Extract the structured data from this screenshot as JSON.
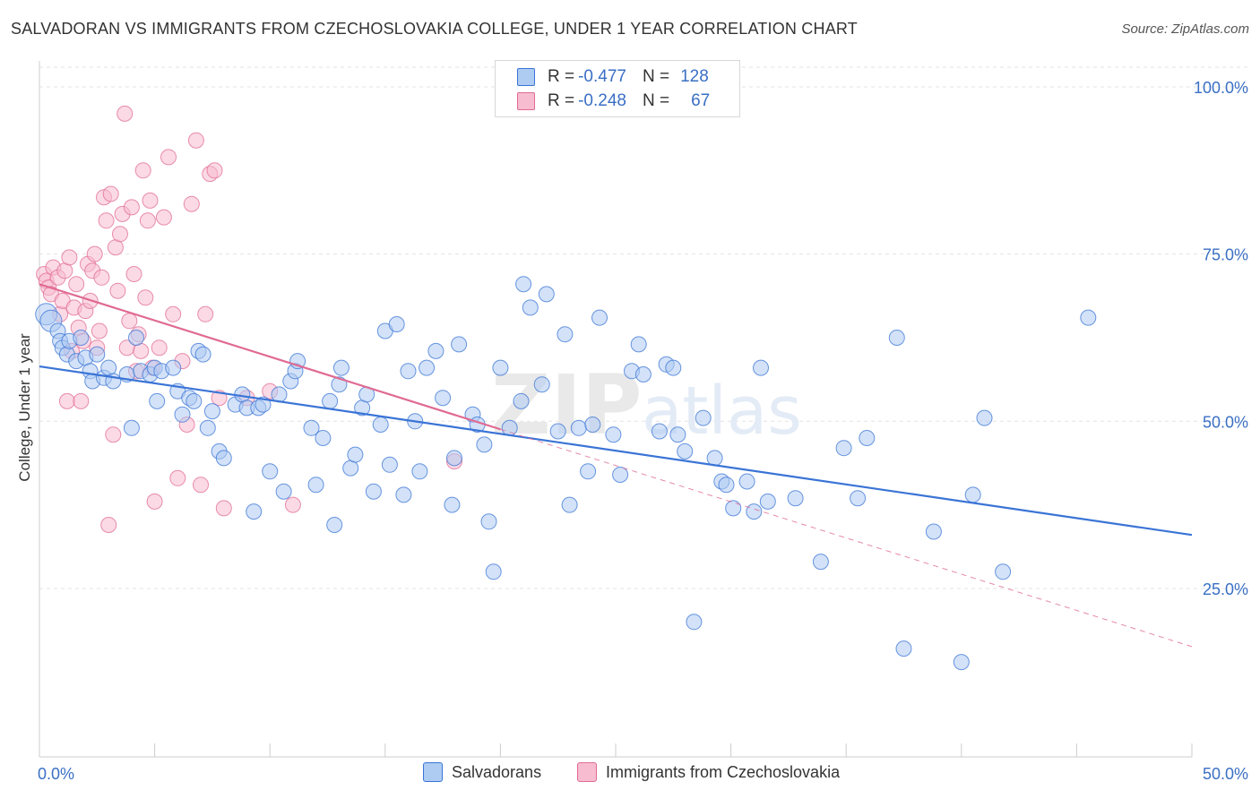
{
  "title": "SALVADORAN VS IMMIGRANTS FROM CZECHOSLOVAKIA COLLEGE, UNDER 1 YEAR CORRELATION CHART",
  "source": "Source: ZipAtlas.com",
  "watermark": {
    "zip": "ZIP",
    "atlas": "atlas"
  },
  "legend": {
    "series1": {
      "r_label": "R = ",
      "r_value": "-0.477",
      "n_label": "N = ",
      "n_value": "128"
    },
    "series2": {
      "r_label": "R = ",
      "r_value": "-0.248",
      "n_label": "N = ",
      "n_value": "67"
    }
  },
  "bottom_legend": [
    "Salvadorans",
    "Immigrants from Czechoslovakia"
  ],
  "colors": {
    "blue": "#3a74d6",
    "blue_fill": "#aecbf2",
    "pink": "#e06a93",
    "pink_fill": "#f7bccf",
    "tick_text": "#3a6fc4",
    "grid": "#e3e3e3"
  },
  "chart_data": {
    "type": "scatter",
    "title": "SALVADORAN VS IMMIGRANTS FROM CZECHOSLOVAKIA COLLEGE, UNDER 1 YEAR CORRELATION CHART",
    "xlabel": "",
    "ylabel": "College, Under 1 year",
    "xlim": [
      0,
      50
    ],
    "ylim": [
      0,
      105
    ],
    "x_tick_labels": [
      "0.0%",
      "50.0%"
    ],
    "y_tick_values": [
      25,
      50,
      75,
      100
    ],
    "y_tick_labels": [
      "25.0%",
      "50.0%",
      "75.0%",
      "100.0%"
    ],
    "grid": true,
    "legend_position": "top-center",
    "series": [
      {
        "name": "Salvadorans",
        "color": "#3a74d6",
        "trend": {
          "x": [
            0,
            50
          ],
          "y": [
            58.2,
            33.0
          ],
          "style": "solid"
        },
        "points": [
          [
            0.3,
            66.0
          ],
          [
            0.5,
            65.0
          ],
          [
            0.8,
            63.5
          ],
          [
            0.9,
            62.0
          ],
          [
            1.0,
            61.0
          ],
          [
            1.2,
            60.0
          ],
          [
            1.3,
            62.0
          ],
          [
            1.6,
            59.0
          ],
          [
            1.8,
            62.5
          ],
          [
            2.0,
            59.5
          ],
          [
            2.2,
            57.5
          ],
          [
            2.3,
            56.0
          ],
          [
            2.5,
            60.0
          ],
          [
            2.8,
            56.5
          ],
          [
            3.0,
            58.0
          ],
          [
            3.2,
            56.0
          ],
          [
            3.8,
            57.0
          ],
          [
            4.0,
            49.0
          ],
          [
            4.2,
            62.5
          ],
          [
            4.4,
            57.5
          ],
          [
            4.8,
            57.0
          ],
          [
            5.0,
            58.0
          ],
          [
            5.1,
            53.0
          ],
          [
            5.3,
            57.5
          ],
          [
            5.8,
            58.0
          ],
          [
            6.0,
            54.5
          ],
          [
            6.2,
            51.0
          ],
          [
            6.5,
            53.5
          ],
          [
            6.7,
            53.0
          ],
          [
            6.9,
            60.5
          ],
          [
            7.1,
            60.0
          ],
          [
            7.3,
            49.0
          ],
          [
            7.5,
            51.5
          ],
          [
            7.8,
            45.5
          ],
          [
            8.0,
            44.5
          ],
          [
            8.5,
            52.5
          ],
          [
            8.8,
            54.0
          ],
          [
            9.0,
            52.0
          ],
          [
            9.3,
            36.5
          ],
          [
            9.5,
            52.0
          ],
          [
            9.7,
            52.5
          ],
          [
            10.0,
            42.5
          ],
          [
            10.4,
            54.0
          ],
          [
            10.6,
            39.5
          ],
          [
            10.9,
            56.0
          ],
          [
            11.1,
            57.5
          ],
          [
            11.2,
            59.0
          ],
          [
            11.8,
            49.0
          ],
          [
            12.0,
            40.5
          ],
          [
            12.3,
            47.5
          ],
          [
            12.6,
            53.0
          ],
          [
            12.8,
            34.5
          ],
          [
            13.0,
            55.5
          ],
          [
            13.1,
            58.0
          ],
          [
            13.5,
            43.0
          ],
          [
            13.7,
            45.0
          ],
          [
            14.0,
            52.0
          ],
          [
            14.2,
            54.0
          ],
          [
            14.5,
            39.5
          ],
          [
            14.8,
            49.5
          ],
          [
            15.0,
            63.5
          ],
          [
            15.2,
            43.5
          ],
          [
            15.5,
            64.5
          ],
          [
            15.8,
            39.0
          ],
          [
            16.0,
            57.5
          ],
          [
            16.3,
            50.0
          ],
          [
            16.5,
            42.5
          ],
          [
            16.8,
            58.0
          ],
          [
            17.2,
            60.5
          ],
          [
            17.5,
            53.5
          ],
          [
            17.9,
            37.5
          ],
          [
            18.0,
            44.5
          ],
          [
            18.2,
            61.5
          ],
          [
            18.8,
            51.0
          ],
          [
            19.0,
            49.5
          ],
          [
            19.3,
            46.5
          ],
          [
            19.5,
            35.0
          ],
          [
            19.7,
            27.5
          ],
          [
            20.0,
            58.0
          ],
          [
            20.4,
            49.0
          ],
          [
            20.9,
            53.0
          ],
          [
            21.0,
            70.5
          ],
          [
            21.3,
            67.0
          ],
          [
            21.8,
            55.5
          ],
          [
            22.0,
            69.0
          ],
          [
            22.5,
            48.5
          ],
          [
            22.8,
            63.0
          ],
          [
            23.0,
            37.5
          ],
          [
            23.4,
            49.0
          ],
          [
            23.8,
            42.5
          ],
          [
            24.0,
            49.5
          ],
          [
            24.3,
            65.5
          ],
          [
            24.9,
            48.0
          ],
          [
            25.2,
            42.0
          ],
          [
            25.7,
            57.5
          ],
          [
            26.0,
            61.5
          ],
          [
            26.2,
            57.0
          ],
          [
            26.9,
            48.5
          ],
          [
            27.2,
            58.5
          ],
          [
            27.5,
            58.0
          ],
          [
            27.7,
            48.0
          ],
          [
            28.0,
            45.5
          ],
          [
            28.4,
            20.0
          ],
          [
            28.8,
            50.5
          ],
          [
            29.3,
            44.5
          ],
          [
            29.6,
            41.0
          ],
          [
            29.8,
            40.5
          ],
          [
            30.1,
            37.0
          ],
          [
            30.7,
            41.0
          ],
          [
            31.0,
            36.5
          ],
          [
            31.3,
            58.0
          ],
          [
            31.6,
            38.0
          ],
          [
            32.8,
            38.5
          ],
          [
            33.9,
            29.0
          ],
          [
            34.9,
            46.0
          ],
          [
            35.5,
            38.5
          ],
          [
            35.9,
            47.5
          ],
          [
            37.2,
            62.5
          ],
          [
            37.5,
            16.0
          ],
          [
            38.8,
            33.5
          ],
          [
            40.0,
            14.0
          ],
          [
            40.5,
            39.0
          ],
          [
            41.0,
            50.5
          ],
          [
            41.8,
            27.5
          ],
          [
            45.5,
            65.5
          ]
        ]
      },
      {
        "name": "Immigrants from Czechoslovakia",
        "color": "#e06a93",
        "trend": {
          "x": [
            0,
            20
          ],
          "y": [
            70.5,
            48.8
          ],
          "style": "solid",
          "extension": {
            "x": [
              20,
              50
            ],
            "y": [
              48.8,
              16.3
            ],
            "style": "dashed"
          }
        },
        "points": [
          [
            0.2,
            72.0
          ],
          [
            0.3,
            71.0
          ],
          [
            0.4,
            70.0
          ],
          [
            0.5,
            69.0
          ],
          [
            0.6,
            73.0
          ],
          [
            0.8,
            71.5
          ],
          [
            0.9,
            66.0
          ],
          [
            1.0,
            68.0
          ],
          [
            1.1,
            72.5
          ],
          [
            1.2,
            53.0
          ],
          [
            1.3,
            74.5
          ],
          [
            1.4,
            60.5
          ],
          [
            1.5,
            67.0
          ],
          [
            1.6,
            70.5
          ],
          [
            1.7,
            64.0
          ],
          [
            1.8,
            53.0
          ],
          [
            1.9,
            62.0
          ],
          [
            2.0,
            66.5
          ],
          [
            2.1,
            73.5
          ],
          [
            2.2,
            68.0
          ],
          [
            2.3,
            72.5
          ],
          [
            2.4,
            75.0
          ],
          [
            2.5,
            61.0
          ],
          [
            2.6,
            63.5
          ],
          [
            2.7,
            71.5
          ],
          [
            2.8,
            83.5
          ],
          [
            2.9,
            80.0
          ],
          [
            3.0,
            34.5
          ],
          [
            3.1,
            84.0
          ],
          [
            3.2,
            48.0
          ],
          [
            3.3,
            76.0
          ],
          [
            3.4,
            69.5
          ],
          [
            3.5,
            78.0
          ],
          [
            3.6,
            81.0
          ],
          [
            3.7,
            96.0
          ],
          [
            3.8,
            61.0
          ],
          [
            3.9,
            65.0
          ],
          [
            4.0,
            82.0
          ],
          [
            4.1,
            72.0
          ],
          [
            4.2,
            57.5
          ],
          [
            4.3,
            63.0
          ],
          [
            4.4,
            60.5
          ],
          [
            4.5,
            87.5
          ],
          [
            4.6,
            68.5
          ],
          [
            4.7,
            80.0
          ],
          [
            4.8,
            83.0
          ],
          [
            4.9,
            58.0
          ],
          [
            5.0,
            38.0
          ],
          [
            5.2,
            61.0
          ],
          [
            5.4,
            80.5
          ],
          [
            5.6,
            89.5
          ],
          [
            5.8,
            66.0
          ],
          [
            6.0,
            41.5
          ],
          [
            6.2,
            59.0
          ],
          [
            6.4,
            49.5
          ],
          [
            6.6,
            82.5
          ],
          [
            6.8,
            92.0
          ],
          [
            7.0,
            40.5
          ],
          [
            7.2,
            66.0
          ],
          [
            7.4,
            87.0
          ],
          [
            7.6,
            87.5
          ],
          [
            7.8,
            53.5
          ],
          [
            8.0,
            37.0
          ],
          [
            9.0,
            53.5
          ],
          [
            10.0,
            54.5
          ],
          [
            11.0,
            37.5
          ],
          [
            18.0,
            44.0
          ]
        ]
      }
    ]
  }
}
